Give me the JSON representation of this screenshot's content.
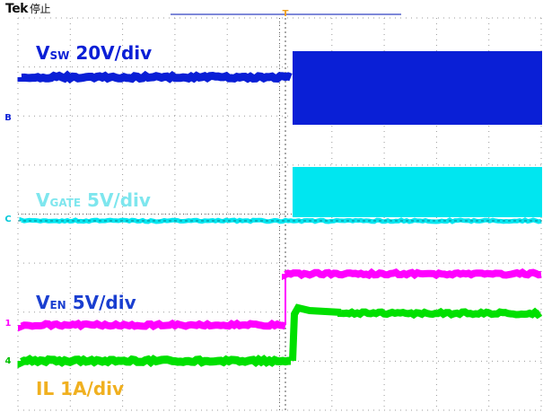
{
  "header": {
    "brand": "Tek",
    "state": "停止"
  },
  "trigger": {
    "marker": "T"
  },
  "channels": [
    {
      "id": "sw",
      "marker": "B",
      "color": "#0a1fd6",
      "label_main": "V",
      "label_sub": "SW",
      "label_tail": " 20V/div"
    },
    {
      "id": "gate",
      "marker": "C",
      "color": "#00e6f0",
      "label_main": "V",
      "label_sub": "GATE",
      "label_tail": " 5V/div"
    },
    {
      "id": "en",
      "marker": "1",
      "color": "#ff00ff",
      "label_main": "V",
      "label_sub": "EN",
      "label_tail": " 5V/div"
    },
    {
      "id": "il",
      "marker": "4",
      "color": "#00e000",
      "label_main": "IL",
      "label_sub": "",
      "label_tail": " 1A/div",
      "label_color": "#f0b020"
    }
  ],
  "colors": {
    "grid": "#9a9a9a",
    "grid_axis": "#555555",
    "trigger": "#f0a020",
    "bar": "#7e88d8"
  }
}
